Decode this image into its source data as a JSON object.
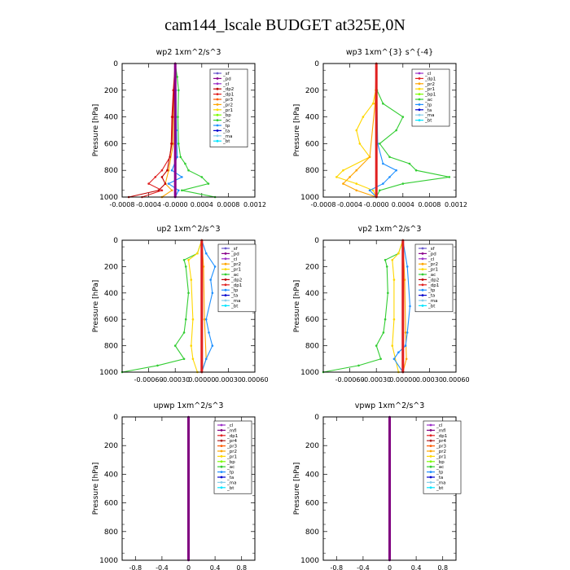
{
  "title": "cam144_lscale  BUDGET at325E,0N",
  "legend_colors": {
    "_sf": "#6a5acd",
    "_pd": "#8b008b",
    "_cl": "#9b30c8",
    "_mfl": "#800080",
    "_dp2": "#c00000",
    "_dp1": "#e02020",
    "_pr4": "#b22222",
    "_pr3": "#ff5a00",
    "_pr2": "#ffa500",
    "_pr1": "#ffd700",
    "_bp": "#7cfc00",
    "_bp1": "#7cfc00",
    "_ac": "#32cd32",
    "_tp": "#1e90ff",
    "_ta": "#0000cd",
    "_ma": "#87ceeb",
    "_bt": "#00e5ff"
  },
  "chart_data": [
    {
      "type": "line",
      "title": "wp2   1xm^2/s^3",
      "ylabel": "Pressure  [hPa]",
      "ylim": [
        1000,
        0
      ],
      "y_ticks": [
        0,
        200,
        400,
        600,
        800,
        1000
      ],
      "xlim": [
        -0.0008,
        0.0012
      ],
      "x_tick_labels": [
        "-0.0008",
        "-0.0004",
        "-0.0000",
        "0.0004",
        "0.0008",
        "0.0012"
      ],
      "legend": [
        "_sf",
        "_pd",
        "_cl",
        "_dp2",
        "_dp1",
        "_pr3",
        "_pr2",
        "_pr1",
        "_bp",
        "_ac",
        "_tp",
        "_ta",
        "_ma",
        "_bt"
      ],
      "series": [
        {
          "name": "_ac",
          "y": [
            0,
            100,
            200,
            400,
            600,
            700,
            750,
            800,
            850,
            900,
            950,
            1000
          ],
          "x": [
            0,
            3e-05,
            5e-05,
            4e-05,
            5e-05,
            8e-05,
            0.00015,
            0.0002,
            0.0004,
            0.0005,
            0.0001,
            0.0006
          ]
        },
        {
          "name": "_pr2",
          "y": [
            0,
            200,
            600,
            800,
            900,
            950,
            1000
          ],
          "x": [
            0,
            -2e-05,
            -3e-05,
            -0.0001,
            -0.00015,
            -5e-05,
            -0.0002
          ]
        },
        {
          "name": "_dp1",
          "y": [
            0,
            200,
            400,
            600,
            700,
            800,
            850,
            900,
            950,
            1000
          ],
          "x": [
            0,
            -3e-05,
            -5e-05,
            -6e-05,
            -8e-05,
            -0.0002,
            -0.0003,
            -0.0004,
            -0.0002,
            -0.0005
          ]
        },
        {
          "name": "_tp",
          "y": [
            0,
            200,
            500,
            700,
            800,
            850,
            900,
            950,
            1000
          ],
          "x": [
            0,
            1e-05,
            2e-05,
            3e-05,
            -5e-05,
            0.0001,
            -0.0001,
            5e-05,
            0
          ]
        },
        {
          "name": "_dp2",
          "y": [
            0,
            200,
            400,
            600,
            800,
            850,
            900,
            950,
            1000
          ],
          "x": [
            0,
            -2e-05,
            -4e-05,
            -5e-05,
            -0.00012,
            -0.0002,
            -0.00015,
            -0.00025,
            -0.0007
          ]
        },
        {
          "name": "_pd",
          "y": [
            0,
            1000
          ],
          "x": [
            0,
            0
          ]
        }
      ]
    },
    {
      "type": "line",
      "title": "wp3   1xm^{3} s^{-4}",
      "ylabel": "Pressure  [hPa]",
      "ylim": [
        1000,
        0
      ],
      "y_ticks": [
        0,
        200,
        400,
        600,
        800,
        1000
      ],
      "xlim": [
        -0.0008,
        0.0012
      ],
      "x_tick_labels": [
        "-0.0008",
        "-0.0004",
        "-0.0000",
        "0.0004",
        "0.0008",
        "0.0012"
      ],
      "legend": [
        "_cl",
        "_dp1",
        "_pr2",
        "_pr1",
        "_bp1",
        "_ac",
        "_tp",
        "_ta",
        "_ma",
        "_bt"
      ],
      "series": [
        {
          "name": "_ac",
          "y": [
            0,
            200,
            300,
            400,
            500,
            600,
            700,
            750,
            800,
            850,
            900,
            950,
            1000
          ],
          "x": [
            0,
            1e-05,
            0.0001,
            0.0004,
            0.0003,
            5e-05,
            0.0002,
            0.0005,
            0.0006,
            0.0011,
            0.0004,
            5e-05,
            0
          ]
        },
        {
          "name": "_pr1",
          "y": [
            0,
            200,
            300,
            400,
            500,
            600,
            700,
            800,
            850,
            900,
            950,
            1000
          ],
          "x": [
            0,
            -1e-05,
            -5e-05,
            -0.0002,
            -0.0003,
            -0.00025,
            -0.0001,
            -0.0005,
            -0.0006,
            -0.0003,
            -5e-05,
            0
          ]
        },
        {
          "name": "_pr2",
          "y": [
            0,
            300,
            700,
            800,
            850,
            900,
            950,
            1000
          ],
          "x": [
            0,
            -2e-05,
            -0.0001,
            -0.0003,
            -0.0004,
            -0.0005,
            -0.0003,
            0
          ]
        },
        {
          "name": "_tp",
          "y": [
            0,
            600,
            750,
            800,
            850,
            900,
            950,
            1000
          ],
          "x": [
            0,
            2e-05,
            0.0001,
            0.0003,
            0.0002,
            0.0001,
            -0.0001,
            0
          ]
        },
        {
          "name": "_dp1",
          "y": [
            0,
            1000
          ],
          "x": [
            0,
            0
          ]
        }
      ]
    },
    {
      "type": "line",
      "title": "up2   1xm^2/s^3",
      "ylabel": "Pressure  [hPa]",
      "ylim": [
        1000,
        0
      ],
      "y_ticks": [
        0,
        200,
        400,
        600,
        800,
        1000
      ],
      "xlim": [
        -0.0009,
        0.0006
      ],
      "x_tick_labels": [
        "-0.00060",
        "-0.00030",
        "0.00000",
        "0.00030",
        "0.00060"
      ],
      "legend": [
        "_sf",
        "_pd",
        "_cl",
        "_pr2",
        "_pr1",
        "_ac",
        "_dp2",
        "_dp1",
        "_tp",
        "_ta",
        "_ma",
        "_bt"
      ],
      "series": [
        {
          "name": "_ac",
          "y": [
            0,
            100,
            150,
            200,
            400,
            600,
            700,
            800,
            900,
            950,
            1000
          ],
          "x": [
            0,
            -5e-05,
            -0.0002,
            -0.00018,
            -0.00015,
            -0.00018,
            -0.0002,
            -0.0003,
            -0.0002,
            -0.0005,
            -0.0009
          ]
        },
        {
          "name": "_pr1",
          "y": [
            0,
            100,
            150,
            300,
            600,
            800,
            900,
            1000
          ],
          "x": [
            0,
            -5e-05,
            -0.00015,
            -0.00012,
            -0.0001,
            -0.00012,
            -0.0001,
            -5e-05
          ]
        },
        {
          "name": "_pr2",
          "y": [
            0,
            200,
            600,
            900,
            1000
          ],
          "x": [
            0,
            2e-05,
            3e-05,
            5e-05,
            0
          ]
        },
        {
          "name": "_tp",
          "y": [
            0,
            100,
            200,
            300,
            400,
            600,
            700,
            800,
            900,
            1000
          ],
          "x": [
            0,
            5e-05,
            0.00015,
            0.0001,
            0.00012,
            5e-05,
            8e-05,
            0.00012,
            5e-05,
            0
          ]
        },
        {
          "name": "_dp1",
          "y": [
            0,
            1000
          ],
          "x": [
            0,
            0
          ]
        }
      ]
    },
    {
      "type": "line",
      "title": "vp2   1xm^2/s^3",
      "ylabel": "Pressure  [hPa]",
      "ylim": [
        1000,
        0
      ],
      "y_ticks": [
        0,
        200,
        400,
        600,
        800,
        1000
      ],
      "xlim": [
        -0.0009,
        0.0006
      ],
      "x_tick_labels": [
        "-0.00060",
        "-0.00030",
        "0.00000",
        "0.00030",
        "0.00060"
      ],
      "legend": [
        "_sf",
        "_pd",
        "_cl",
        "_pr2",
        "_pr1",
        "_ac",
        "_dp2",
        "_dp1",
        "_tp",
        "_ta",
        "_ma",
        "_bt"
      ],
      "series": [
        {
          "name": "_ac",
          "y": [
            0,
            100,
            150,
            200,
            400,
            600,
            700,
            800,
            900,
            950,
            1000
          ],
          "x": [
            0,
            -5e-05,
            -0.0002,
            -0.00018,
            -0.00017,
            -0.0002,
            -0.00022,
            -0.0003,
            -0.00025,
            -0.0005,
            -0.0009
          ]
        },
        {
          "name": "_pr1",
          "y": [
            0,
            100,
            150,
            300,
            600,
            800,
            1000
          ],
          "x": [
            0,
            -5e-05,
            -0.00012,
            -0.0001,
            -0.0001,
            -0.00012,
            -5e-05
          ]
        },
        {
          "name": "_pr2",
          "y": [
            0,
            300,
            700,
            900,
            1000
          ],
          "x": [
            0,
            2e-05,
            3e-05,
            4e-05,
            0
          ]
        },
        {
          "name": "_tp",
          "y": [
            0,
            200,
            500,
            700,
            800,
            850,
            900,
            1000
          ],
          "x": [
            0,
            5e-05,
            8e-05,
            5e-05,
            3e-05,
            -5e-05,
            -0.0001,
            0
          ]
        },
        {
          "name": "_dp1",
          "y": [
            0,
            1000
          ],
          "x": [
            0,
            0
          ]
        }
      ]
    },
    {
      "type": "line",
      "title": "upwp   1xm^2/s^3",
      "ylabel": "Pressure  [hPa]",
      "ylim": [
        1000,
        0
      ],
      "y_ticks": [
        0,
        200,
        400,
        600,
        800,
        1000
      ],
      "xlim": [
        -1.0,
        1.0
      ],
      "x_tick_labels": [
        "-0.8",
        "-0.4",
        "0",
        "0.4",
        "0.8"
      ],
      "legend": [
        "_cl",
        "_mfl",
        "_dp1",
        "_pr4",
        "_pr3",
        "_pr2",
        "_pr1",
        "_bp",
        "_ac",
        "_tp",
        "_ta",
        "_ma",
        "_bt"
      ],
      "series": [
        {
          "name": "_mfl",
          "y": [
            0,
            1000
          ],
          "x": [
            0,
            0
          ]
        }
      ]
    },
    {
      "type": "line",
      "title": "vpwp   1xm^2/s^3",
      "ylabel": "Pressure  [hPa]",
      "ylim": [
        1000,
        0
      ],
      "y_ticks": [
        0,
        200,
        400,
        600,
        800,
        1000
      ],
      "xlim": [
        -1.0,
        1.0
      ],
      "x_tick_labels": [
        "-0.8",
        "-0.4",
        "0",
        "0.4",
        "0.8"
      ],
      "legend": [
        "_cl",
        "_mfl",
        "_dp1",
        "_pr4",
        "_pr3",
        "_pr2",
        "_pr1",
        "_bp",
        "_ac",
        "_tp",
        "_ta",
        "_ma",
        "_bt"
      ],
      "series": [
        {
          "name": "_mfl",
          "y": [
            0,
            1000
          ],
          "x": [
            0,
            0
          ]
        }
      ]
    }
  ]
}
